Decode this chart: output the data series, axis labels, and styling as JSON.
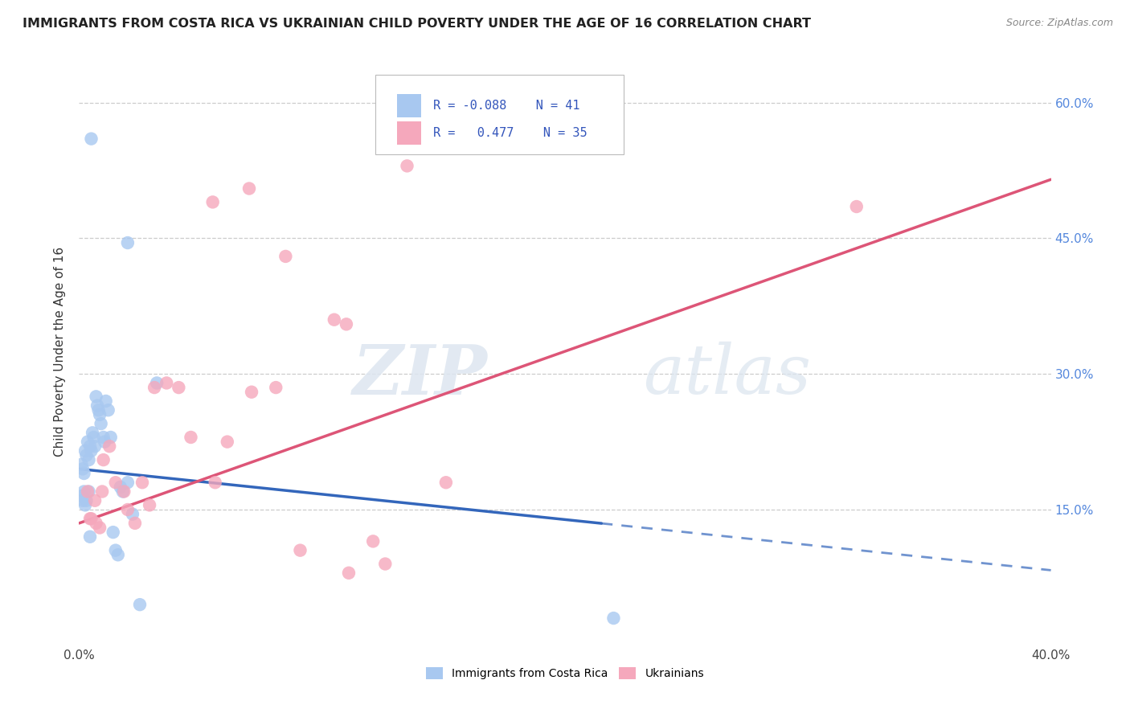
{
  "title": "IMMIGRANTS FROM COSTA RICA VS UKRAINIAN CHILD POVERTY UNDER THE AGE OF 16 CORRELATION CHART",
  "source": "Source: ZipAtlas.com",
  "ylabel": "Child Poverty Under the Age of 16",
  "legend_label1": "Immigrants from Costa Rica",
  "legend_label2": "Ukrainians",
  "r1": "-0.088",
  "n1": "41",
  "r2": "0.477",
  "n2": "35",
  "blue_color": "#A8C8F0",
  "pink_color": "#F5A8BC",
  "blue_line_color": "#3366BB",
  "pink_line_color": "#DD5577",
  "watermark_zip": "ZIP",
  "watermark_atlas": "atlas",
  "x_min": 0,
  "x_max": 40,
  "y_min": 0,
  "y_max": 65,
  "blue_x": [
    0.5,
    2.0,
    3.2,
    0.1,
    0.15,
    0.2,
    0.25,
    0.3,
    0.35,
    0.4,
    0.45,
    0.5,
    0.55,
    0.6,
    0.65,
    0.7,
    0.75,
    0.8,
    0.85,
    0.9,
    1.0,
    1.05,
    1.1,
    1.2,
    1.3,
    1.4,
    1.5,
    1.6,
    1.7,
    1.8,
    2.0,
    2.2,
    2.5,
    0.1,
    0.15,
    0.2,
    0.25,
    0.3,
    0.4,
    0.45,
    22.0
  ],
  "blue_y": [
    56.0,
    44.5,
    29.0,
    20.0,
    19.5,
    19.0,
    21.5,
    21.0,
    22.5,
    20.5,
    22.0,
    21.5,
    23.5,
    23.0,
    22.0,
    27.5,
    26.5,
    26.0,
    25.5,
    24.5,
    23.0,
    22.5,
    27.0,
    26.0,
    23.0,
    12.5,
    10.5,
    10.0,
    17.5,
    17.0,
    18.0,
    14.5,
    4.5,
    16.5,
    16.0,
    17.0,
    15.5,
    16.0,
    17.0,
    12.0,
    3.0
  ],
  "pink_x": [
    5.5,
    7.0,
    8.5,
    10.5,
    11.0,
    13.5,
    0.5,
    0.7,
    0.85,
    1.0,
    1.25,
    1.5,
    1.85,
    2.0,
    2.3,
    2.6,
    2.9,
    3.1,
    3.6,
    4.1,
    4.6,
    5.6,
    6.1,
    7.1,
    8.1,
    9.1,
    11.1,
    12.1,
    12.6,
    15.1,
    0.35,
    0.45,
    0.65,
    0.95,
    32.0
  ],
  "pink_y": [
    49.0,
    50.5,
    43.0,
    36.0,
    35.5,
    53.0,
    14.0,
    13.5,
    13.0,
    20.5,
    22.0,
    18.0,
    17.0,
    15.0,
    13.5,
    18.0,
    15.5,
    28.5,
    29.0,
    28.5,
    23.0,
    18.0,
    22.5,
    28.0,
    28.5,
    10.5,
    8.0,
    11.5,
    9.0,
    18.0,
    17.0,
    14.0,
    16.0,
    17.0,
    48.5
  ],
  "blue_line_intercept": 19.5,
  "blue_line_slope": -0.28,
  "pink_line_intercept": 13.5,
  "pink_line_slope": 0.95,
  "blue_solid_end": 21.5,
  "ytick_positions": [
    15,
    30,
    45,
    60
  ],
  "xtick_positions": [
    0,
    10,
    20,
    30,
    40
  ]
}
